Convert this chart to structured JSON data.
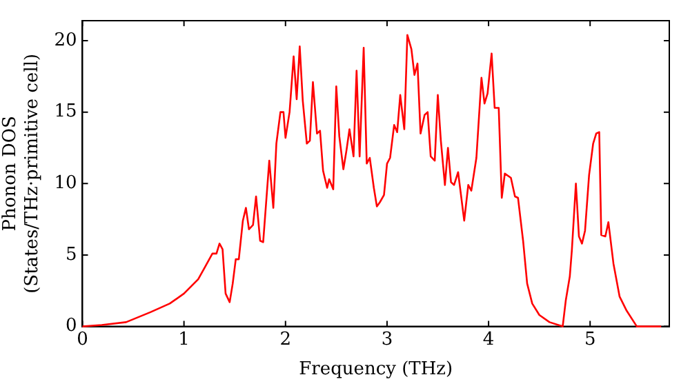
{
  "chart_data": {
    "type": "line",
    "xlabel": "Frequency (THz)",
    "ylabel": "Phonon DOS\n(States/THz·primitive cell)",
    "xlim": [
      0,
      5.78
    ],
    "xticks": [
      0,
      1,
      2,
      3,
      4,
      5
    ],
    "ylim": [
      0,
      21.4
    ],
    "yticks": [
      0,
      5,
      10,
      15,
      20
    ],
    "grid": false,
    "legend": false,
    "marker": "none",
    "line_style": "solid",
    "series": [
      {
        "color": "#ff0000",
        "x": [
          0,
          0.19,
          0.43,
          0.67,
          0.86,
          1.0,
          1.14,
          1.21,
          1.28,
          1.32,
          1.35,
          1.38,
          1.41,
          1.45,
          1.48,
          1.51,
          1.54,
          1.58,
          1.61,
          1.64,
          1.68,
          1.71,
          1.75,
          1.78,
          1.84,
          1.88,
          1.91,
          1.95,
          1.98,
          2.0,
          2.04,
          2.08,
          2.11,
          2.14,
          2.17,
          2.21,
          2.24,
          2.27,
          2.31,
          2.34,
          2.37,
          2.41,
          2.43,
          2.47,
          2.5,
          2.53,
          2.57,
          2.6,
          2.63,
          2.67,
          2.7,
          2.73,
          2.77,
          2.8,
          2.83,
          2.87,
          2.9,
          2.93,
          2.97,
          3.0,
          3.03,
          3.07,
          3.1,
          3.13,
          3.17,
          3.2,
          3.24,
          3.27,
          3.3,
          3.33,
          3.37,
          3.4,
          3.43,
          3.47,
          3.5,
          3.53,
          3.57,
          3.6,
          3.63,
          3.66,
          3.7,
          3.76,
          3.8,
          3.83,
          3.88,
          3.93,
          3.96,
          3.99,
          4.03,
          4.06,
          4.1,
          4.13,
          4.16,
          4.22,
          4.26,
          4.29,
          4.34,
          4.38,
          4.43,
          4.5,
          4.6,
          4.73,
          4.76,
          4.8,
          4.82,
          4.86,
          4.89,
          4.92,
          4.95,
          4.99,
          5.03,
          5.06,
          5.09,
          5.11,
          5.15,
          5.18,
          5.23,
          5.29,
          5.36,
          5.46,
          5.7
        ],
        "values": [
          0,
          0.1,
          0.3,
          1.0,
          1.6,
          2.3,
          3.3,
          4.2,
          5.1,
          5.1,
          5.8,
          5.4,
          2.3,
          1.7,
          3.0,
          4.7,
          4.7,
          7.4,
          8.3,
          6.8,
          7.1,
          9.1,
          6.0,
          5.9,
          11.6,
          8.3,
          12.8,
          15.0,
          15.0,
          13.2,
          15.0,
          18.9,
          15.9,
          19.6,
          15.8,
          12.8,
          13.0,
          17.1,
          13.5,
          13.7,
          10.9,
          9.7,
          10.3,
          9.6,
          16.8,
          13.3,
          11.0,
          12.3,
          13.8,
          11.9,
          17.9,
          11.9,
          19.5,
          11.4,
          11.8,
          9.7,
          8.4,
          8.7,
          9.2,
          11.4,
          11.8,
          14.1,
          13.6,
          16.2,
          13.8,
          20.4,
          19.4,
          17.6,
          18.4,
          13.5,
          14.8,
          15.0,
          11.9,
          11.6,
          16.2,
          13.0,
          9.9,
          12.5,
          10.1,
          9.9,
          10.8,
          7.4,
          9.9,
          9.5,
          11.8,
          17.4,
          15.6,
          16.3,
          19.1,
          15.3,
          15.3,
          9.0,
          10.7,
          10.4,
          9.1,
          9.0,
          6.0,
          3.0,
          1.6,
          0.8,
          0.3,
          0,
          1.8,
          3.5,
          5.3,
          10.0,
          6.3,
          5.8,
          6.7,
          10.6,
          12.8,
          13.5,
          13.6,
          6.4,
          6.3,
          7.3,
          4.4,
          2.1,
          1.1,
          0,
          0
        ]
      }
    ]
  }
}
